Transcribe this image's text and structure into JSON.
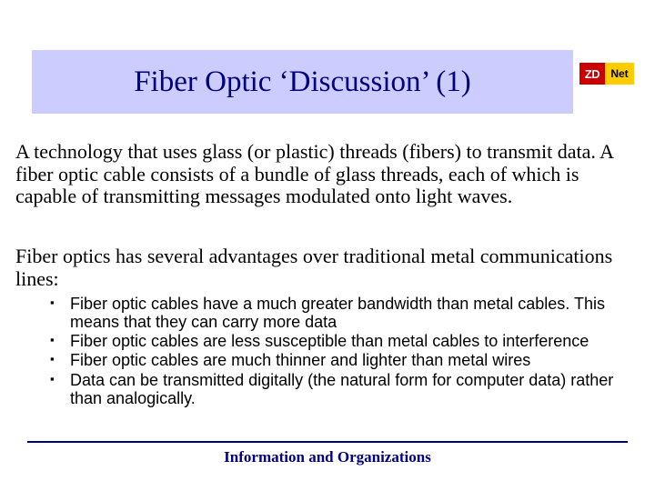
{
  "title": {
    "text": "Fiber Optic ‘Discussion’ (1)",
    "bg_color": "#ccccff",
    "text_color": "#000080",
    "fontsize": 33
  },
  "logo": {
    "left_text": "ZD",
    "left_bg": "#cc0000",
    "left_fg": "#ffffff",
    "right_text": "Net",
    "right_bg": "#ffcc00",
    "right_fg": "#000000"
  },
  "paragraphs": {
    "p1": "A technology that uses glass (or plastic) threads (fibers) to transmit data. A fiber optic cable consists of a bundle of glass threads, each of which is capable of transmitting messages modulated onto light waves.",
    "p2": "Fiber optics has several advantages over traditional metal communications lines:",
    "fontsize": 22,
    "color": "#000000"
  },
  "bullets": {
    "marker": "▪",
    "fontsize": 18,
    "items": [
      "Fiber optic cables have a much greater bandwidth than metal cables. This means that they can carry more data",
      "Fiber optic cables are less susceptible than metal cables to interference",
      "Fiber optic cables are much thinner and lighter than metal wires",
      "Data can be transmitted digitally (the natural form for computer data) rather than analogically."
    ]
  },
  "divider": {
    "color": "#000080"
  },
  "footer": {
    "text": "Information and Organizations",
    "color": "#000080",
    "fontsize": 17
  },
  "background_color": "#ffffff"
}
